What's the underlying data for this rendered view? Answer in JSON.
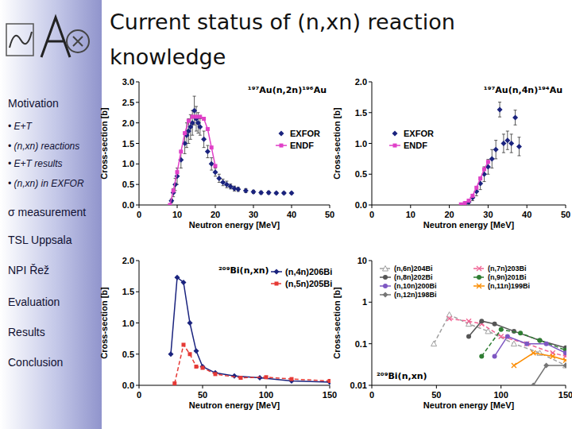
{
  "slide": {
    "title": "Current status of (n,xn) reaction knowledge",
    "menu": [
      "Motivation",
      "• E+T",
      "• (n,xn) reactions",
      "• E+T results",
      "• (n,xn) in EXFOR",
      "σ measurement",
      "TSL Uppsala",
      "NPI Řež",
      "Evaluation",
      "Results",
      "Conclusion"
    ]
  },
  "chart_data": [
    {
      "type": "scatter",
      "title": "¹⁹⁷Au(n,2n)¹⁹⁶Au",
      "x_label": "Neutron energy [MeV]",
      "y_label": "Cross-section [b]",
      "xlim": [
        0,
        50
      ],
      "xticks": [
        0,
        10,
        20,
        30,
        40,
        50
      ],
      "ylim": [
        0,
        3
      ],
      "yticks": [
        {
          "value": 0,
          "label": "0.0"
        },
        {
          "value": 0.5,
          "label": "0.5"
        },
        {
          "value": 1,
          "label": "1.0"
        },
        {
          "value": 1.5,
          "label": "1.5"
        },
        {
          "value": 2,
          "label": "2.0"
        },
        {
          "value": 2.5,
          "label": "2.5"
        },
        {
          "value": 3,
          "label": "3.0"
        }
      ],
      "grid": false,
      "legend": "right",
      "series": [
        {
          "name": "EXFOR",
          "type": "scatter",
          "color": "#1a237e",
          "marker": "diamond",
          "x": [
            8.5,
            9,
            9.5,
            10,
            11,
            12,
            12.5,
            13,
            13.5,
            14,
            14.5,
            15,
            15.5,
            16,
            17,
            18,
            19,
            20,
            21,
            22,
            23,
            24,
            25,
            26,
            28,
            30,
            32,
            34,
            36,
            38,
            40
          ],
          "values": [
            0.1,
            0.3,
            0.5,
            0.7,
            1.1,
            1.5,
            1.7,
            1.8,
            1.9,
            2.0,
            2.3,
            2.1,
            2.0,
            1.9,
            1.6,
            1.3,
            1.0,
            0.8,
            0.65,
            0.55,
            0.5,
            0.45,
            0.4,
            0.38,
            0.35,
            0.32,
            0.3,
            0.3,
            0.29,
            0.29,
            0.29
          ],
          "errors": [
            0.05,
            0.1,
            0.15,
            0.2,
            0.2,
            0.25,
            0.3,
            0.3,
            0.3,
            0.3,
            0.35,
            0.3,
            0.25,
            0.2,
            0.2,
            0.15,
            0.15,
            0.1,
            0.1,
            0.08,
            0.08,
            0.06,
            0.06,
            0.05,
            0.05,
            0.04,
            0.04,
            0.04,
            0.03,
            0.03,
            0.03
          ]
        },
        {
          "name": "ENDF",
          "type": "line",
          "color": "#e040c8",
          "marker": "square",
          "line_style": "solid",
          "x": [
            8.1,
            9,
            10,
            11,
            12,
            13,
            14,
            15,
            16,
            17,
            18,
            19,
            20
          ],
          "values": [
            0,
            0.35,
            0.8,
            1.3,
            1.75,
            2.05,
            2.15,
            2.15,
            2.15,
            2.1,
            1.85,
            1.4,
            0.95
          ]
        }
      ]
    },
    {
      "type": "scatter",
      "title": "¹⁹⁷Au(n,4n)¹⁹⁴Au",
      "x_label": "Neutron energy [MeV]",
      "y_label": "Cross-section [b]",
      "xlim": [
        0,
        50
      ],
      "xticks": [
        0,
        10,
        20,
        30,
        40,
        50
      ],
      "ylim": [
        0,
        2
      ],
      "yticks": [
        {
          "value": 0,
          "label": "0.0"
        },
        {
          "value": 0.5,
          "label": "0.5"
        },
        {
          "value": 1,
          "label": "1.0"
        },
        {
          "value": 1.5,
          "label": "1.5"
        },
        {
          "value": 2,
          "label": "2.0"
        }
      ],
      "grid": false,
      "legend": "left",
      "series": [
        {
          "name": "EXFOR",
          "type": "scatter",
          "color": "#1a237e",
          "marker": "diamond",
          "x": [
            24,
            25,
            26,
            27,
            28,
            29,
            30,
            31,
            32,
            33,
            34,
            35,
            36,
            37,
            38
          ],
          "values": [
            0.02,
            0.05,
            0.12,
            0.22,
            0.35,
            0.5,
            0.62,
            0.75,
            0.9,
            1.55,
            1.0,
            1.05,
            1.0,
            1.42,
            0.95
          ],
          "errors": [
            0.02,
            0.03,
            0.05,
            0.07,
            0.1,
            0.12,
            0.12,
            0.15,
            0.15,
            0.12,
            0.15,
            0.15,
            0.15,
            0.12,
            0.15
          ]
        },
        {
          "name": "ENDF",
          "type": "line",
          "color": "#e040c8",
          "marker": "square",
          "line_style": "solid",
          "x": [
            23,
            24,
            25,
            26,
            27,
            28,
            29,
            30
          ],
          "values": [
            0.01,
            0.03,
            0.07,
            0.15,
            0.28,
            0.43,
            0.58,
            0.7
          ]
        }
      ]
    },
    {
      "type": "line",
      "title": "²⁰⁹Bi(n,xn)",
      "x_label": "Neutron energy [MeV]",
      "y_label": "Cross-section [b]",
      "xlim": [
        0,
        150
      ],
      "xticks": [
        0,
        50,
        100,
        150
      ],
      "ylim": [
        0,
        2
      ],
      "yticks": [
        {
          "value": 0,
          "label": "0.0"
        },
        {
          "value": 0.5,
          "label": "0.5"
        },
        {
          "value": 1,
          "label": "1.0"
        },
        {
          "value": 1.5,
          "label": "1.5"
        },
        {
          "value": 2,
          "label": "2.0"
        }
      ],
      "grid": false,
      "legend": "top-right",
      "series": [
        {
          "name": "(n,4n)206Bi",
          "color": "#1a237e",
          "marker": "diamond",
          "line_style": "solid",
          "x": [
            25,
            30,
            35,
            40,
            45,
            50,
            60,
            75,
            95,
            120,
            150
          ],
          "values": [
            0.5,
            1.73,
            1.65,
            1.0,
            0.55,
            0.3,
            0.2,
            0.15,
            0.12,
            0.07,
            0.05
          ]
        },
        {
          "name": "(n,5n)205Bi",
          "color": "#e53935",
          "marker": "square",
          "line_style": "dashed",
          "x": [
            28,
            35,
            40,
            45,
            50,
            60,
            80,
            100,
            120,
            150
          ],
          "values": [
            0.03,
            0.65,
            0.5,
            0.3,
            0.28,
            0.18,
            0.12,
            0.13,
            0.1,
            0.07
          ]
        }
      ]
    },
    {
      "type": "line",
      "title": "²⁰⁹Bi(n,xn)",
      "x_label": "Neutron energy [MeV]",
      "y_label": "Cross-section [b]",
      "xlim": [
        0,
        150
      ],
      "xticks": [
        0,
        50,
        100,
        150
      ],
      "ylim": [
        0.01,
        10
      ],
      "yticks": [
        0.01,
        0.1,
        1,
        10
      ],
      "log": "y",
      "grid": false,
      "legend": "top",
      "series": [
        {
          "name": "(n,6n)204Bi",
          "color": "#a0a0a0",
          "marker": "triangle",
          "line_style": "dashed",
          "x": [
            48,
            60,
            75,
            90,
            110,
            130,
            150
          ],
          "values": [
            0.1,
            0.5,
            0.3,
            0.2,
            0.1,
            0.06,
            0.03
          ]
        },
        {
          "name": "(n,7n)203Bi",
          "color": "#f06292",
          "marker": "x",
          "line_style": "dashed",
          "x": [
            60,
            75,
            85,
            100,
            120,
            140,
            150
          ],
          "values": [
            0.4,
            0.35,
            0.3,
            0.15,
            0.1,
            0.06,
            0.05
          ]
        },
        {
          "name": "(n,8n)202Bi",
          "color": "#555555",
          "marker": "circle",
          "line_style": "solid",
          "x": [
            75,
            85,
            95,
            110,
            130,
            150
          ],
          "values": [
            0.15,
            0.35,
            0.3,
            0.2,
            0.12,
            0.08
          ]
        },
        {
          "name": "(n,9n)201Bi",
          "color": "#2e7d32",
          "marker": "circle",
          "line_style": "dashed",
          "x": [
            85,
            100,
            115,
            130,
            150
          ],
          "values": [
            0.05,
            0.22,
            0.18,
            0.12,
            0.07
          ]
        },
        {
          "name": "(n,10n)200Bi",
          "color": "#7e57c2",
          "marker": "circle",
          "line_style": "solid",
          "x": [
            95,
            105,
            120,
            135,
            150
          ],
          "values": [
            0.05,
            0.15,
            0.1,
            0.1,
            0.06
          ]
        },
        {
          "name": "(n,11n)199Bi",
          "color": "#fb8c00",
          "marker": "x",
          "line_style": "solid",
          "x": [
            110,
            125,
            140,
            150
          ],
          "values": [
            0.03,
            0.06,
            0.05,
            0.04
          ]
        },
        {
          "name": "(n,12n)198Bi",
          "color": "#757575",
          "marker": "diamond",
          "line_style": "solid",
          "x": [
            125,
            135,
            150
          ],
          "values": [
            0.01,
            0.03,
            0.03
          ]
        }
      ]
    }
  ]
}
